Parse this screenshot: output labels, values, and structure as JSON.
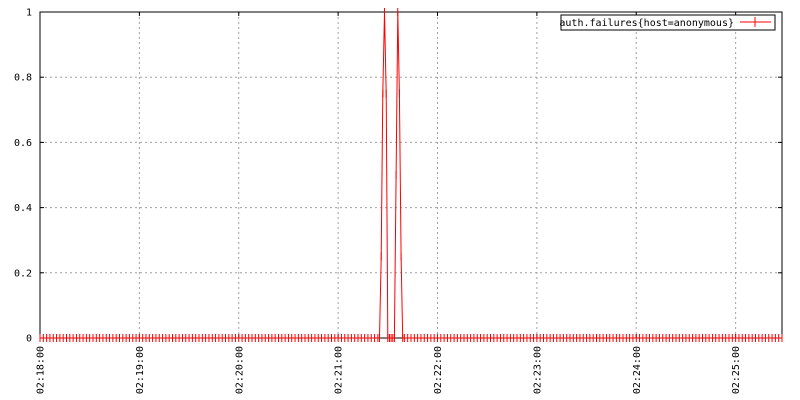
{
  "chart_data": {
    "type": "line",
    "title": "",
    "xlabel": "",
    "ylabel": "",
    "grid": true,
    "legend_position": "top-right",
    "x_ticks": [
      "02:18:00",
      "02:19:00",
      "02:20:00",
      "02:21:00",
      "02:22:00",
      "02:23:00",
      "02:24:00",
      "02:25:00"
    ],
    "y_ticks": [
      "0",
      "0.2",
      "0.4",
      "0.6",
      "0.8",
      "1"
    ],
    "xlim": [
      "02:18:00",
      "02:25:28"
    ],
    "ylim": [
      0,
      1
    ],
    "series": [
      {
        "name": "auth.failures{host=anonymous}",
        "color": "#ff0000",
        "points": [
          [
            "02:21:25",
            0
          ],
          [
            "02:21:26",
            0.25
          ],
          [
            "02:21:27",
            0.75
          ],
          [
            "02:21:28",
            1
          ],
          [
            "02:21:29",
            0.75
          ],
          [
            "02:21:30",
            0
          ],
          [
            "02:21:31",
            0
          ],
          [
            "02:21:32",
            0
          ],
          [
            "02:21:33",
            0
          ],
          [
            "02:21:34",
            0
          ],
          [
            "02:21:35",
            0.5
          ],
          [
            "02:21:36",
            1
          ],
          [
            "02:21:37",
            0.75
          ],
          [
            "02:21:38",
            0.25
          ],
          [
            "02:21:39",
            0
          ]
        ]
      }
    ]
  }
}
